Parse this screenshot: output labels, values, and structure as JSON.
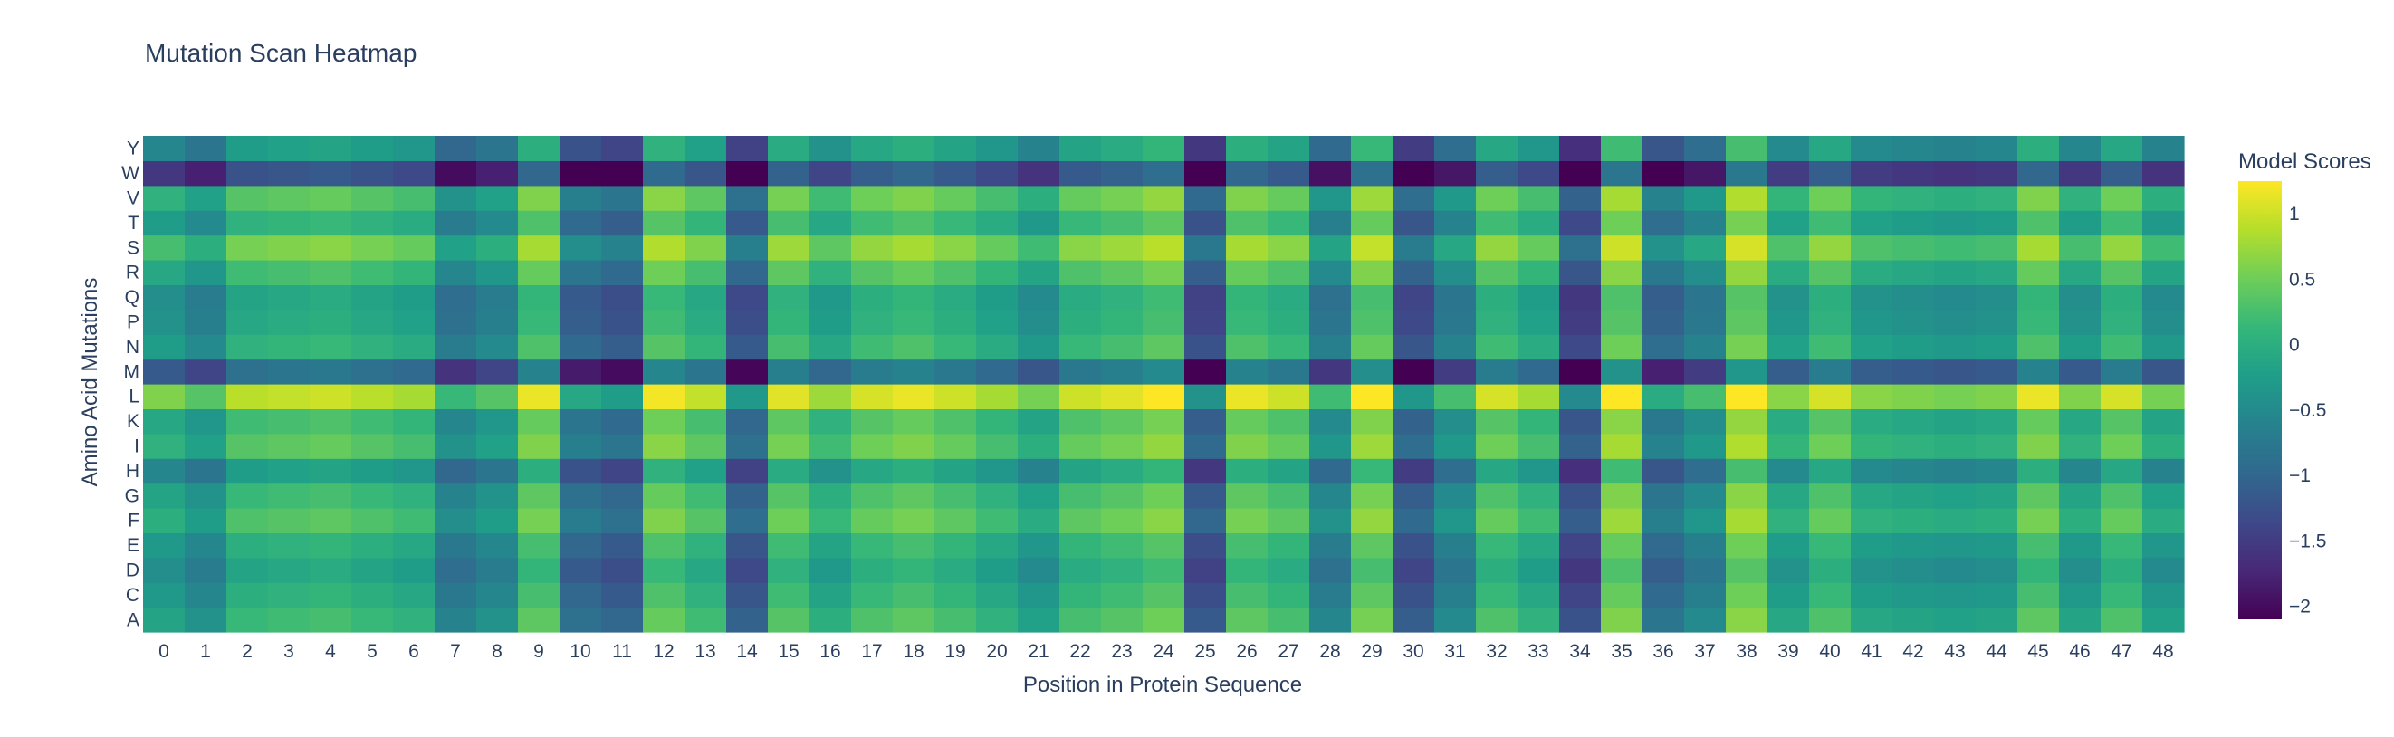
{
  "chart_data": {
    "type": "heatmap",
    "title": "Mutation Scan Heatmap",
    "xlabel": "Position in Protein Sequence",
    "ylabel": "Amino Acid Mutations",
    "colorbar_title": "Model Scores",
    "colorscale": "viridis",
    "zrange": [
      -2.1,
      1.25
    ],
    "colorbar_ticks": [
      1,
      0.5,
      0,
      -0.5,
      -1,
      -1.5,
      -2
    ],
    "colorbar_tick_labels": [
      "1",
      "0.5",
      "0",
      "−0.5",
      "−1",
      "−1.5",
      "−2"
    ],
    "x": [
      "0",
      "1",
      "2",
      "3",
      "4",
      "5",
      "6",
      "7",
      "8",
      "9",
      "10",
      "11",
      "12",
      "13",
      "14",
      "15",
      "16",
      "17",
      "18",
      "19",
      "20",
      "21",
      "22",
      "23",
      "24",
      "25",
      "26",
      "27",
      "28",
      "29",
      "30",
      "31",
      "32",
      "33",
      "34",
      "35",
      "36",
      "37",
      "38",
      "39",
      "40",
      "41",
      "42",
      "43",
      "44",
      "45",
      "46",
      "47",
      "48"
    ],
    "y": [
      "A",
      "C",
      "D",
      "E",
      "F",
      "G",
      "H",
      "I",
      "K",
      "L",
      "M",
      "N",
      "P",
      "Q",
      "R",
      "S",
      "T",
      "V",
      "W",
      "Y"
    ],
    "col_offsets": [
      -0.1,
      -0.35,
      0.2,
      0.25,
      0.3,
      0.2,
      0.1,
      -0.55,
      -0.35,
      0.45,
      -0.8,
      -0.95,
      0.5,
      0.25,
      -1.0,
      0.4,
      0.05,
      0.35,
      0.45,
      0.3,
      0.1,
      -0.15,
      0.3,
      0.4,
      0.55,
      -1.1,
      0.45,
      0.3,
      -0.5,
      0.6,
      -1.05,
      -0.45,
      0.35,
      0.1,
      -1.2,
      0.65,
      -0.75,
      -0.45,
      0.7,
      -0.05,
      0.35,
      -0.05,
      -0.1,
      -0.15,
      -0.1,
      0.45,
      -0.1,
      0.35,
      -0.15
    ],
    "row_offsets": [
      -0.05,
      -0.2,
      -0.35,
      -0.2,
      0.1,
      -0.05,
      -0.45,
      0.15,
      0.0,
      0.7,
      -1.05,
      -0.15,
      -0.3,
      -0.35,
      0.0,
      0.35,
      -0.15,
      0.15,
      -1.45,
      -0.45
    ]
  }
}
